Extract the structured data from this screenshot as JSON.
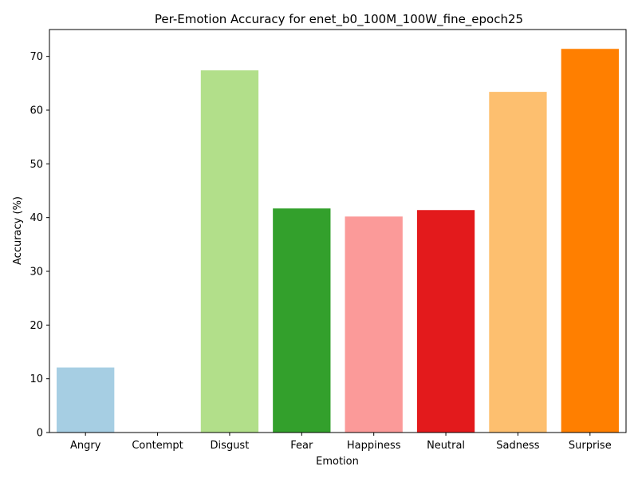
{
  "chart_data": {
    "type": "bar",
    "title": "Per-Emotion Accuracy for enet_b0_100M_100W_fine_epoch25",
    "xlabel": "Emotion",
    "ylabel": "Accuracy (%)",
    "categories": [
      "Angry",
      "Contempt",
      "Disgust",
      "Fear",
      "Happiness",
      "Neutral",
      "Sadness",
      "Surprise"
    ],
    "values": [
      12.1,
      0.0,
      67.4,
      41.7,
      40.2,
      41.4,
      63.4,
      71.4
    ],
    "colors": [
      "#a6cee3",
      "#1f78b4",
      "#b2df8a",
      "#33a02c",
      "#fb9a99",
      "#e31a1c",
      "#fdbf6f",
      "#ff7f00"
    ],
    "ylim": [
      0,
      75
    ],
    "yticks": [
      0,
      10,
      20,
      30,
      40,
      50,
      60,
      70
    ],
    "grid": false,
    "legend": "none"
  }
}
